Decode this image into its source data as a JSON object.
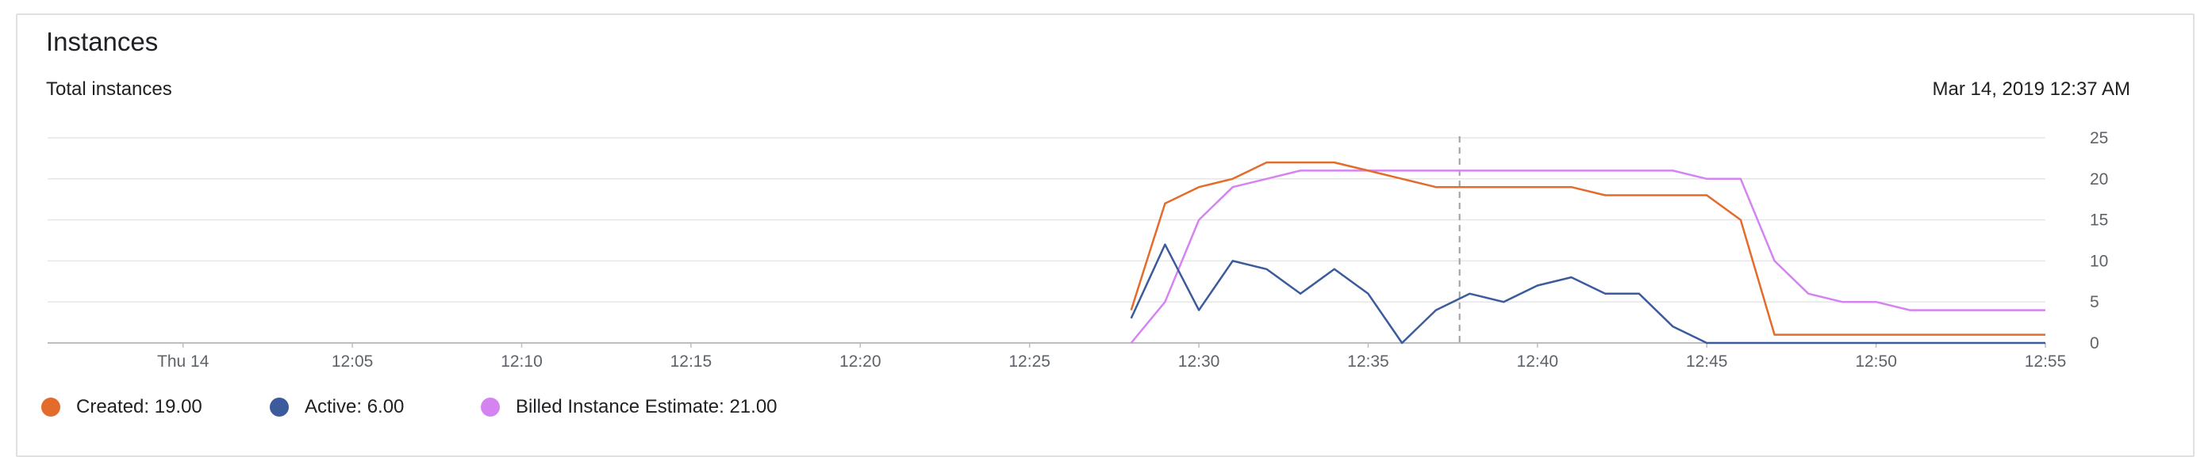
{
  "card": {
    "title": "Instances",
    "subtitle": "Total instances",
    "timestamp": "Mar 14, 2019 12:37 AM"
  },
  "legend": [
    {
      "label": "Created: 19.00",
      "color": "#e36c2c"
    },
    {
      "label": "Active: 6.00",
      "color": "#3b5b9c"
    },
    {
      "label": "Billed Instance Estimate: 21.00",
      "color": "#d683f2"
    }
  ],
  "chart_data": {
    "type": "line",
    "title": "Total instances",
    "x_tick_labels": [
      "Thu 14",
      "12:05",
      "12:10",
      "12:15",
      "12:20",
      "12:25",
      "12:30",
      "12:35",
      "12:40",
      "12:45",
      "12:50",
      "12:55"
    ],
    "x_tick_minutes": [
      0,
      5,
      10,
      15,
      20,
      25,
      30,
      35,
      40,
      45,
      50,
      55
    ],
    "xlim_minutes": [
      -4,
      55
    ],
    "y_ticks": [
      0,
      5,
      10,
      15,
      20,
      25
    ],
    "ylim": [
      0,
      25
    ],
    "grid": true,
    "cursor_minute": 37.7,
    "series": [
      {
        "name": "Created",
        "color": "#e36c2c",
        "x": [
          28,
          29,
          30,
          31,
          32,
          33,
          34,
          35,
          36,
          37,
          38,
          39,
          40,
          41,
          42,
          43,
          44,
          45,
          46,
          47,
          48,
          49,
          50,
          51,
          52,
          53,
          54,
          55
        ],
        "values": [
          4,
          17,
          19,
          20,
          22,
          22,
          22,
          21,
          20,
          19,
          19,
          19,
          19,
          19,
          18,
          18,
          18,
          18,
          15,
          1,
          1,
          1,
          1,
          1,
          1,
          1,
          1,
          1
        ]
      },
      {
        "name": "Active",
        "color": "#3b5b9c",
        "x": [
          28,
          29,
          30,
          31,
          32,
          33,
          34,
          35,
          36,
          37,
          38,
          39,
          40,
          41,
          42,
          43,
          44,
          45,
          46,
          47,
          48,
          49,
          50,
          51,
          52,
          53,
          54,
          55
        ],
        "values": [
          3,
          12,
          4,
          10,
          9,
          6,
          9,
          6,
          0,
          4,
          6,
          5,
          7,
          8,
          6,
          6,
          2,
          0,
          0,
          0,
          0,
          0,
          0,
          0,
          0,
          0,
          0,
          0
        ]
      },
      {
        "name": "Billed Instance Estimate",
        "color": "#d683f2",
        "x": [
          28,
          29,
          30,
          31,
          32,
          33,
          34,
          35,
          36,
          37,
          38,
          39,
          40,
          41,
          42,
          43,
          44,
          45,
          46,
          47,
          48,
          49,
          50,
          51,
          52,
          53,
          54,
          55
        ],
        "values": [
          0,
          5,
          15,
          19,
          20,
          21,
          21,
          21,
          21,
          21,
          21,
          21,
          21,
          21,
          21,
          21,
          21,
          20,
          20,
          10,
          6,
          5,
          5,
          4,
          4,
          4,
          4,
          4
        ]
      }
    ]
  }
}
